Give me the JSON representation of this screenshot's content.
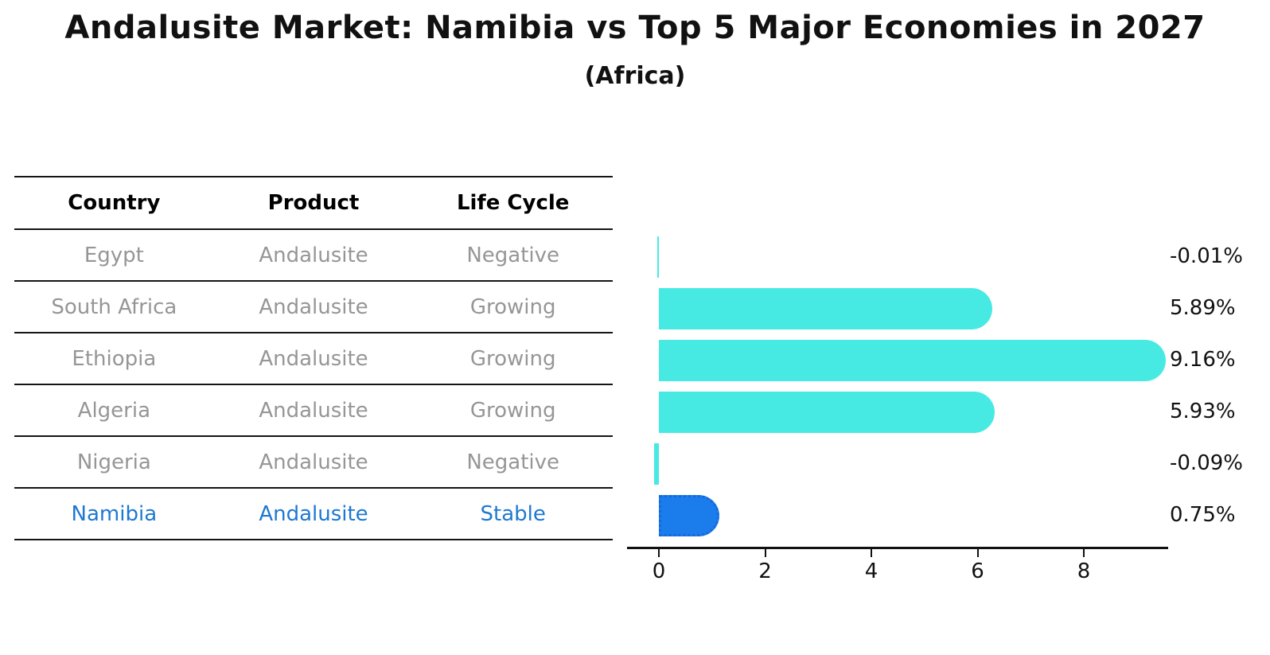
{
  "title": "Andalusite Market: Namibia vs Top 5 Major Economies in 2027",
  "subtitle": "(Africa)",
  "table": {
    "columns": [
      "Country",
      "Product",
      "Life Cycle"
    ],
    "rows": [
      {
        "country": "Egypt",
        "product": "Andalusite",
        "life_cycle": "Negative",
        "highlight": false
      },
      {
        "country": "South Africa",
        "product": "Andalusite",
        "life_cycle": "Growing",
        "highlight": false
      },
      {
        "country": "Ethiopia",
        "product": "Andalusite",
        "life_cycle": "Growing",
        "highlight": false
      },
      {
        "country": "Algeria",
        "product": "Andalusite",
        "life_cycle": "Growing",
        "highlight": false
      },
      {
        "country": "Nigeria",
        "product": "Andalusite",
        "life_cycle": "Negative",
        "highlight": false
      },
      {
        "country": "Namibia",
        "product": "Andalusite",
        "life_cycle": "Stable",
        "highlight": true
      }
    ]
  },
  "chart_data": {
    "type": "bar",
    "orientation": "horizontal",
    "categories": [
      "Egypt",
      "South Africa",
      "Ethiopia",
      "Algeria",
      "Nigeria",
      "Namibia"
    ],
    "values": [
      -0.01,
      5.89,
      9.16,
      5.93,
      -0.09,
      0.75
    ],
    "value_labels": [
      "-0.01%",
      "5.89%",
      "9.16%",
      "5.93%",
      "-0.09%",
      "0.75%"
    ],
    "highlight_category": "Namibia",
    "x_ticks": [
      "0",
      "2",
      "4",
      "6",
      "8"
    ],
    "xlim": [
      -0.6,
      9.6
    ],
    "grid": false,
    "legend": false,
    "colors": {
      "bar": "#47EAE3",
      "bar_highlight": "#1B7CEC",
      "bar_highlight_border": "#1668DD",
      "highlight_text": "#1E78D2",
      "muted_text": "#969696",
      "axis": "#111111"
    }
  }
}
